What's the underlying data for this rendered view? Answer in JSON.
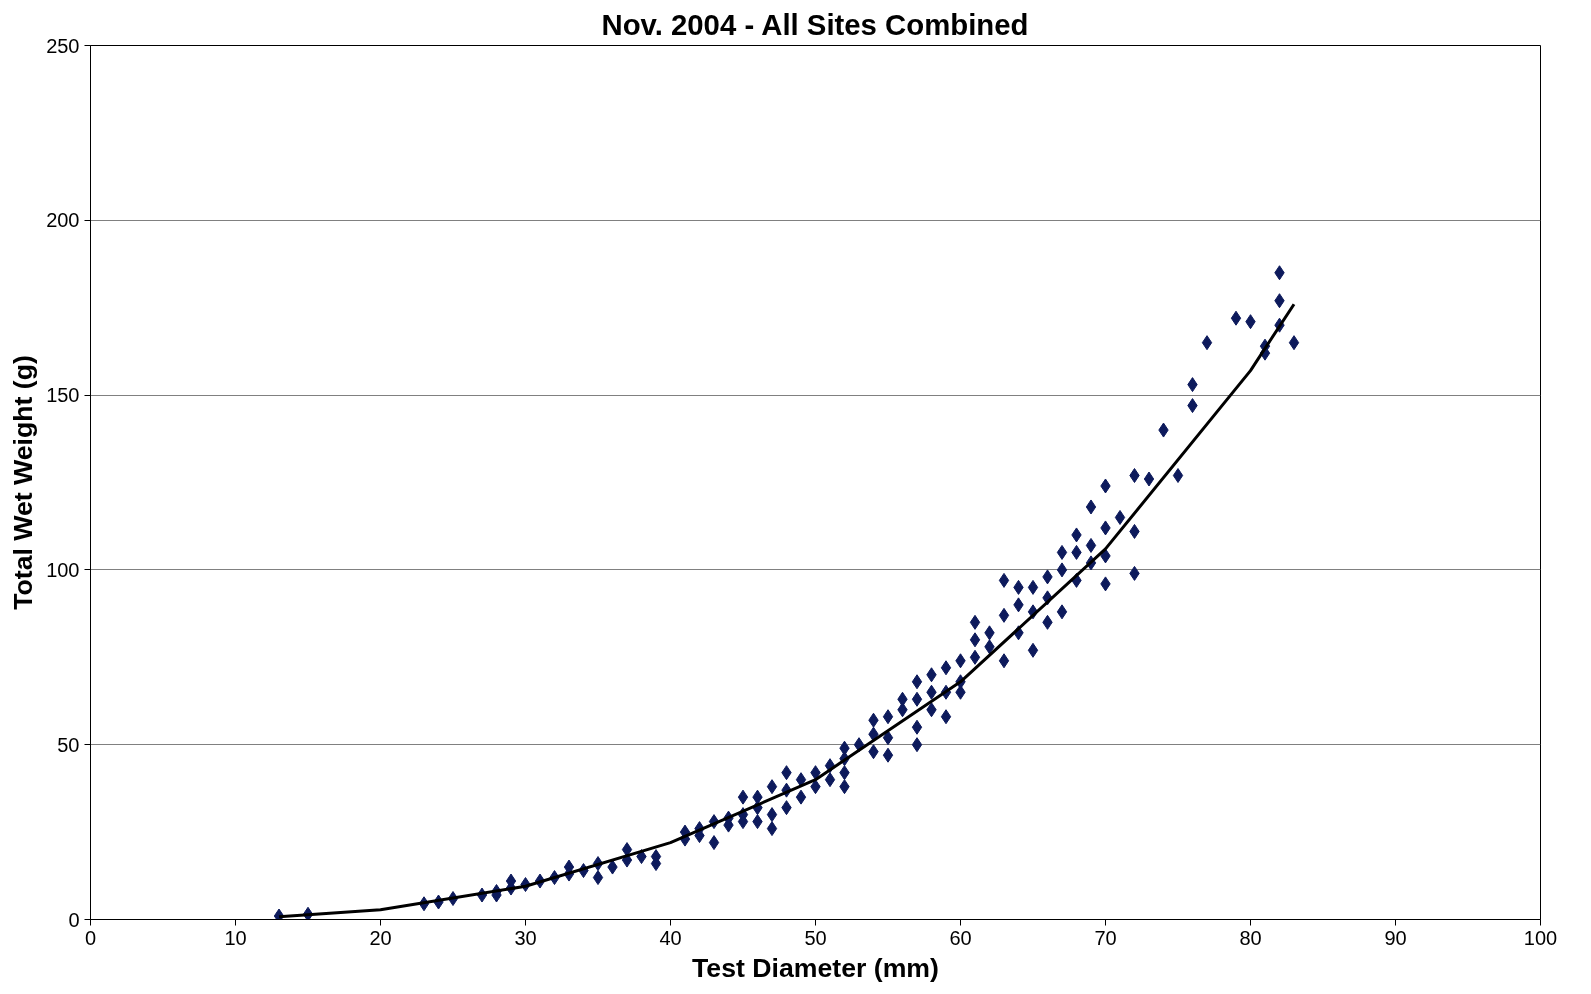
{
  "chart_data": {
    "type": "scatter",
    "title": "Nov. 2004 - All Sites Combined",
    "xlabel": "Test Diameter (mm)",
    "ylabel": "Total Wet Weight (g)",
    "xlim": [
      0,
      100
    ],
    "xticks": [
      0,
      10,
      20,
      30,
      40,
      50,
      60,
      70,
      80,
      90,
      100
    ],
    "ylim": [
      0,
      250
    ],
    "yticks": [
      0,
      50,
      100,
      150,
      200,
      250
    ],
    "grid": "y",
    "marker": "diamond",
    "series": [
      {
        "color": "#0d1a5c",
        "x": [
          13,
          15,
          23,
          24,
          25,
          27,
          28,
          28,
          29,
          29,
          30,
          31,
          32,
          33,
          33,
          34,
          35,
          35,
          36,
          37,
          37,
          38,
          39,
          39,
          41,
          41,
          42,
          42,
          43,
          43,
          44,
          44,
          45,
          45,
          45,
          46,
          46,
          46,
          47,
          47,
          47,
          48,
          48,
          48,
          49,
          49,
          50,
          50,
          51,
          51,
          52,
          52,
          52,
          52,
          53,
          54,
          54,
          54,
          55,
          55,
          55,
          56,
          56,
          57,
          57,
          57,
          57,
          58,
          58,
          58,
          59,
          59,
          59,
          60,
          60,
          60,
          61,
          61,
          61,
          62,
          62,
          63,
          63,
          63,
          64,
          64,
          64,
          65,
          65,
          65,
          66,
          66,
          66,
          67,
          67,
          67,
          68,
          68,
          68,
          69,
          69,
          69,
          70,
          70,
          70,
          70,
          71,
          72,
          72,
          72,
          73,
          74,
          75,
          76,
          76,
          77,
          79,
          80,
          81,
          81,
          82,
          82,
          82,
          83
        ],
        "values": [
          1,
          1.5,
          4.5,
          5,
          6,
          7,
          7,
          8,
          9,
          11,
          10,
          11,
          12,
          15,
          13,
          14,
          12,
          16,
          15,
          17,
          20,
          18,
          16,
          18,
          23,
          25,
          26,
          24,
          28,
          22,
          29,
          27,
          30,
          35,
          28,
          32,
          35,
          28,
          30,
          26,
          38,
          37,
          42,
          32,
          40,
          35,
          38,
          42,
          40,
          44,
          42,
          46,
          38,
          49,
          50,
          48,
          53,
          57,
          52,
          47,
          58,
          60,
          63,
          55,
          50,
          63,
          68,
          60,
          65,
          70,
          58,
          65,
          72,
          68,
          74,
          65,
          75,
          80,
          85,
          78,
          82,
          74,
          87,
          97,
          82,
          90,
          95,
          77,
          88,
          95,
          85,
          92,
          98,
          88,
          100,
          105,
          97,
          110,
          105,
          102,
          118,
          107,
          96,
          104,
          112,
          124,
          115,
          99,
          111,
          127,
          126,
          140,
          127,
          147,
          153,
          165,
          172,
          171,
          162,
          164,
          185,
          177,
          170,
          165
        ]
      },
      {
        "type": "line",
        "color": "#000000",
        "marker": "none",
        "x": [
          13,
          20,
          30,
          40,
          50,
          60,
          70,
          80,
          83
        ],
        "values": [
          0.8,
          2.8,
          9.5,
          22,
          40,
          68,
          106,
          157,
          176
        ]
      }
    ]
  }
}
